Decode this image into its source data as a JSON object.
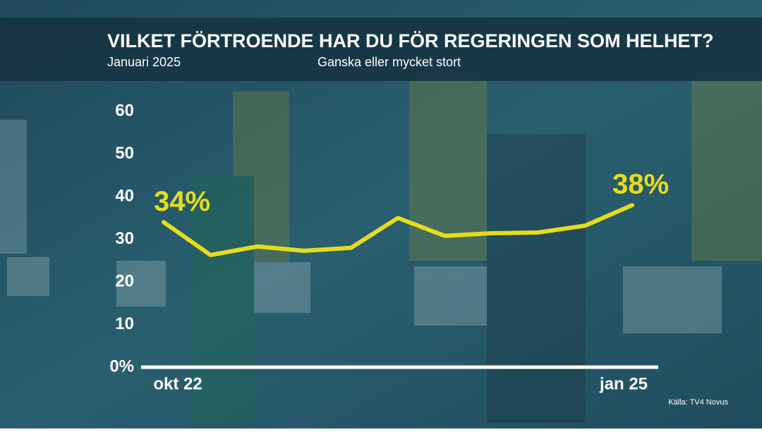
{
  "chart_data": {
    "type": "line",
    "title": "VILKET FÖRTROENDE HAR DU FÖR REGERINGEN SOM HELHET?",
    "date": "Januari 2025",
    "subtitle": "Ganska eller mycket stort",
    "source": "Källa: TV4 Novus",
    "categories": [
      "okt 22",
      null,
      null,
      null,
      null,
      null,
      null,
      null,
      null,
      null,
      "jan 25"
    ],
    "series": [
      {
        "name": "Ganska eller mycket stort",
        "color": "#e6dc1e",
        "values": [
          34,
          26.3,
          28.3,
          27.3,
          28,
          35,
          30.8,
          31.4,
          31.6,
          33.2,
          38
        ],
        "value_labels": [
          "34%",
          null,
          null,
          null,
          null,
          null,
          null,
          null,
          null,
          null,
          "38%"
        ]
      }
    ],
    "ylim": [
      0,
      60
    ],
    "yticks": [
      {
        "value": 0,
        "label": "0%"
      },
      10,
      20,
      30,
      40,
      50,
      60
    ]
  }
}
